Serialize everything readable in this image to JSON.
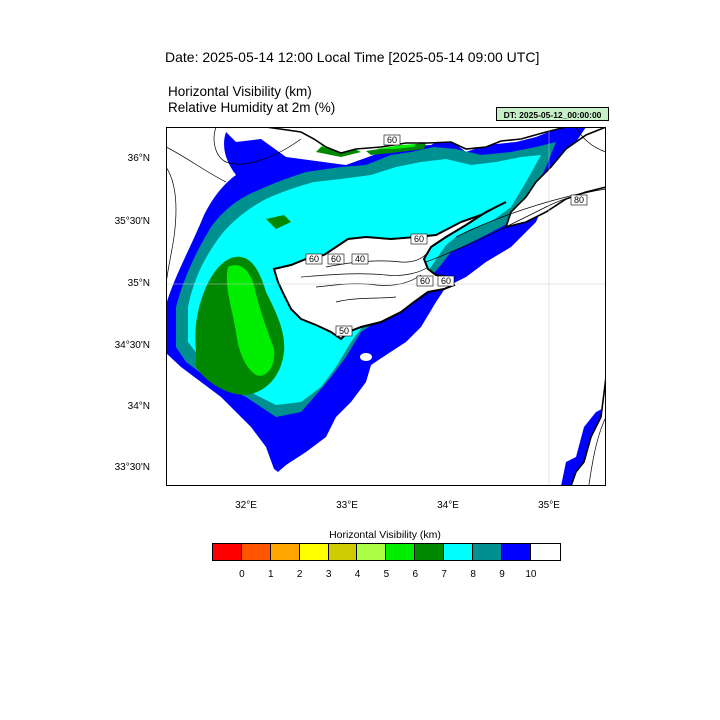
{
  "header": {
    "date_line": "Date: 2025-05-14  12:00 Local Time [2025-05-14  09:00 UTC]",
    "field_line1": "Horizontal Visibility   (km)",
    "field_line2": "Relative Humidity at 2m   (%)",
    "dt_badge": "DT: 2025-05-12_00:00:00"
  },
  "axes": {
    "lat_labels": [
      "36°N",
      "35°30'N",
      "35°N",
      "34°30'N",
      "34°N",
      "33°30'N"
    ],
    "lon_labels": [
      "32°E",
      "33°E",
      "34°E",
      "35°E"
    ]
  },
  "contour_labels": [
    "60",
    "80",
    "60",
    "60",
    "40",
    "60",
    "60",
    "60",
    "50"
  ],
  "colorbar": {
    "title": "Horizontal Visibility  (km)",
    "colors": [
      "#ff0000",
      "#ff5500",
      "#ffa500",
      "#ffff00",
      "#cccc00",
      "#aaff44",
      "#00ee00",
      "#008800",
      "#00ffff",
      "#009090",
      "#0000ff",
      "#ffffff"
    ],
    "ticks": [
      "0",
      "1",
      "2",
      "3",
      "4",
      "5",
      "6",
      "7",
      "8",
      "9",
      "10"
    ]
  },
  "colors": {
    "blue": "#0000ff",
    "teal": "#009090",
    "cyan": "#00ffff",
    "dark_green": "#008800",
    "green": "#00ee00",
    "yellow": "#ffff00",
    "land_white": "#ffffff"
  }
}
